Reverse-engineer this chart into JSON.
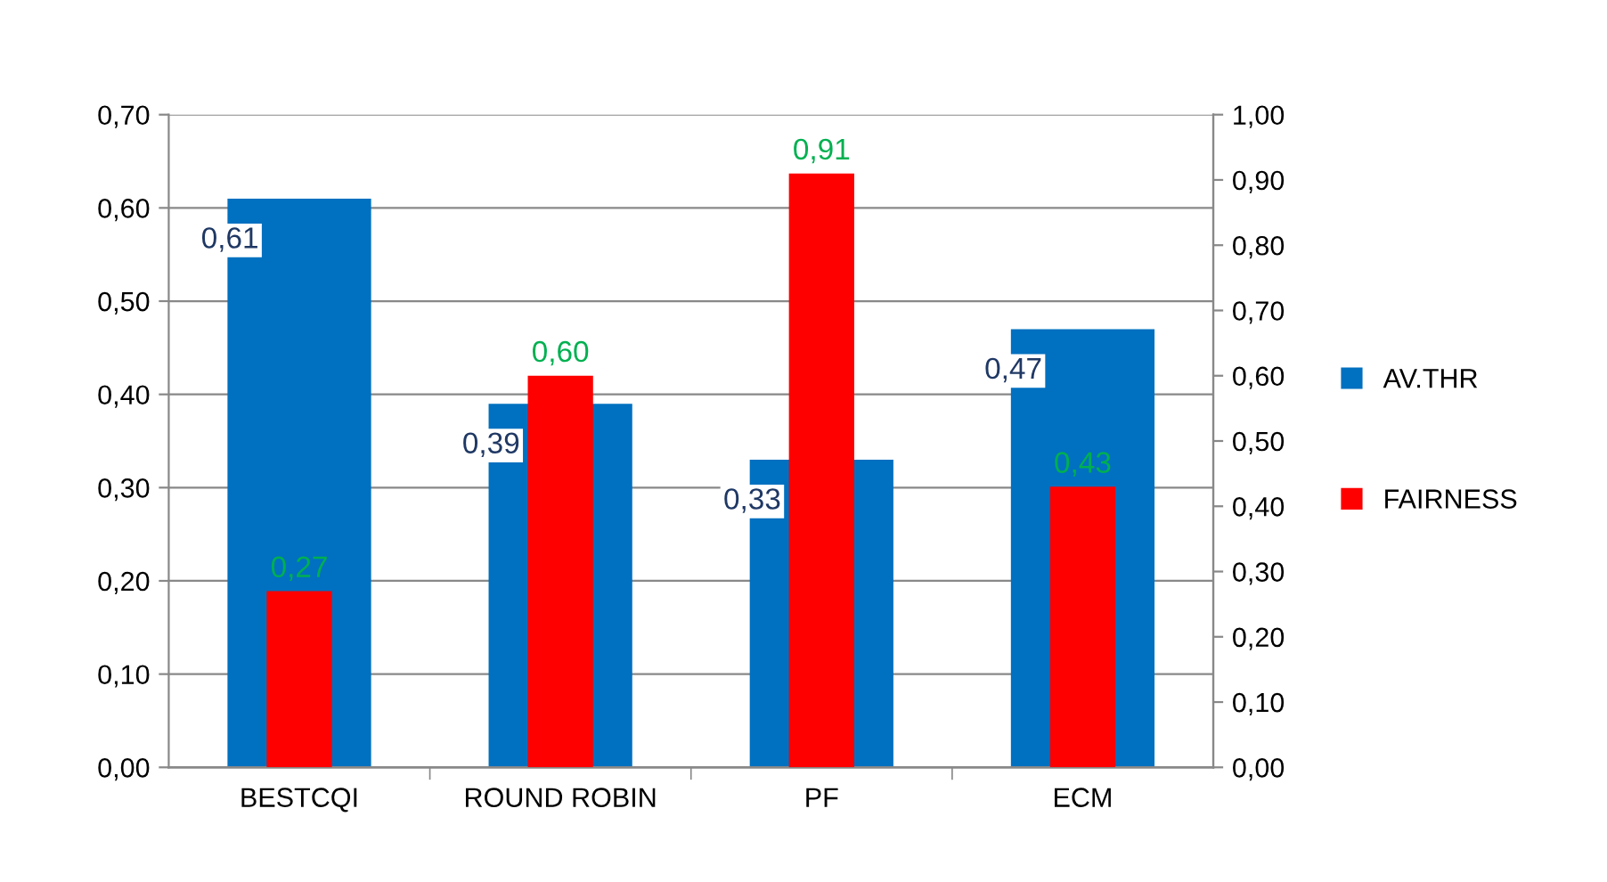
{
  "chart_data": {
    "type": "bar",
    "categories": [
      "BESTCQI",
      "ROUND ROBIN",
      "PF",
      "ECM"
    ],
    "series": [
      {
        "name": "AV.THR",
        "color": "#0070c0",
        "values": [
          0.61,
          0.39,
          0.33,
          0.47
        ],
        "value_labels": [
          "0,61",
          "0,39",
          "0,33",
          "0,47"
        ]
      },
      {
        "name": "FAIRNESS",
        "color": "#ff0000",
        "axis": "y2",
        "values": [
          0.27,
          0.6,
          0.91,
          0.43
        ],
        "value_labels": [
          "0,27",
          "0,60",
          "0,91",
          "0,43"
        ]
      }
    ],
    "ylim": [
      0,
      0.7
    ],
    "yticks": [
      {
        "value": 0,
        "label": "0,00"
      },
      {
        "value": 0.1,
        "label": "0,10"
      },
      {
        "value": 0.2,
        "label": "0,20"
      },
      {
        "value": 0.3,
        "label": "0,30"
      },
      {
        "value": 0.4,
        "label": "0,40"
      },
      {
        "value": 0.5,
        "label": "0,50"
      },
      {
        "value": 0.6,
        "label": "0,60"
      },
      {
        "value": 0.7,
        "label": "0,70"
      }
    ],
    "y2lim": [
      0,
      1
    ],
    "y2ticks": [
      {
        "value": 0,
        "label": "0,00"
      },
      {
        "value": 0.1,
        "label": "0,10"
      },
      {
        "value": 0.2,
        "label": "0,20"
      },
      {
        "value": 0.3,
        "label": "0,30"
      },
      {
        "value": 0.4,
        "label": "0,40"
      },
      {
        "value": 0.5,
        "label": "0,50"
      },
      {
        "value": 0.6,
        "label": "0,60"
      },
      {
        "value": 0.7,
        "label": "0,70"
      },
      {
        "value": 0.8,
        "label": "0,80"
      },
      {
        "value": 0.9,
        "label": "0,90"
      },
      {
        "value": 1,
        "label": "1,00"
      }
    ],
    "grid": "y",
    "legend": "right"
  }
}
